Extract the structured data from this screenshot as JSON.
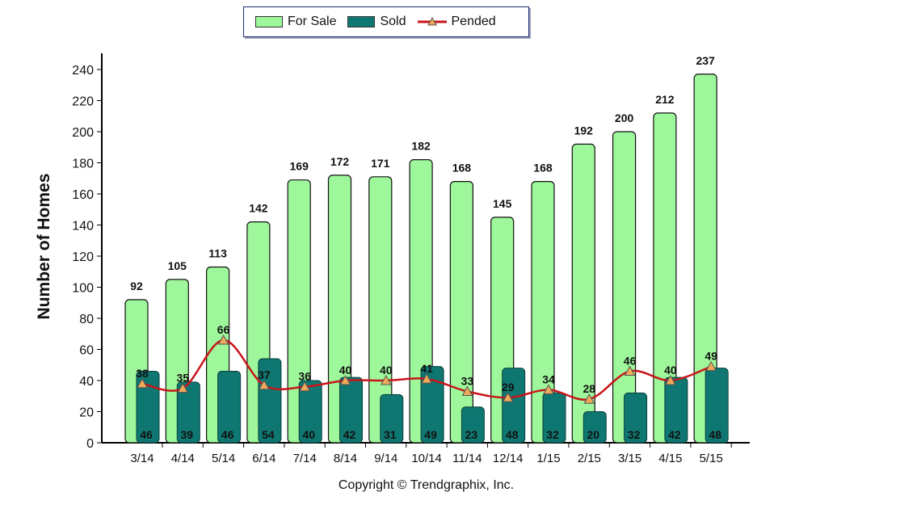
{
  "legend": {
    "for_sale": "For Sale",
    "sold": "Sold",
    "pended": "Pended"
  },
  "ylabel": "Number of Homes",
  "copyright": "Copyright © Trendgraphix, Inc.",
  "colors": {
    "for_sale": "#9ef79a",
    "sold": "#0f7771",
    "pended": "#c8151b",
    "marker": "#f0a95a"
  },
  "chart_data": {
    "type": "bar",
    "categories": [
      "3/14",
      "4/14",
      "5/14",
      "6/14",
      "7/14",
      "8/14",
      "9/14",
      "10/14",
      "11/14",
      "12/14",
      "1/15",
      "2/15",
      "3/15",
      "4/15",
      "5/15"
    ],
    "series": [
      {
        "name": "For Sale",
        "type": "bar",
        "values": [
          92,
          105,
          113,
          142,
          169,
          172,
          171,
          182,
          168,
          145,
          168,
          192,
          200,
          212,
          237
        ]
      },
      {
        "name": "Sold",
        "type": "bar",
        "values": [
          46,
          39,
          46,
          54,
          40,
          42,
          31,
          49,
          23,
          48,
          32,
          20,
          32,
          42,
          48
        ]
      },
      {
        "name": "Pended",
        "type": "line",
        "values": [
          38,
          35,
          66,
          37,
          36,
          40,
          40,
          41,
          33,
          29,
          34,
          28,
          46,
          40,
          49
        ]
      }
    ],
    "ylabel": "Number of Homes",
    "ylim": [
      0,
      250
    ],
    "yticks": [
      0,
      20,
      40,
      60,
      80,
      100,
      120,
      140,
      160,
      180,
      200,
      220,
      240
    ],
    "legend": "top"
  }
}
